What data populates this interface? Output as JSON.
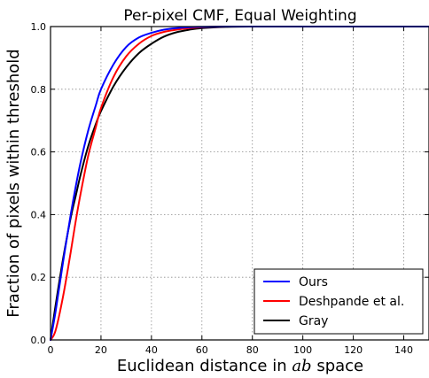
{
  "chart_data": {
    "type": "line",
    "title": "Per-pixel CMF, Equal Weighting",
    "xlabel_prefix": "Euclidean distance in ",
    "xlabel_math": "ab",
    "xlabel_suffix": " space",
    "ylabel": "Fraction of pixels within threshold",
    "xlim": [
      0,
      150
    ],
    "ylim": [
      0,
      1.0
    ],
    "xticks": [
      0,
      20,
      40,
      60,
      80,
      100,
      120,
      140
    ],
    "yticks": [
      0.0,
      0.2,
      0.4,
      0.6,
      0.8,
      1.0
    ],
    "ytick_labels": [
      "0.0",
      "0.2",
      "0.4",
      "0.6",
      "0.8",
      "1.0"
    ],
    "grid": true,
    "legend_position": "lower-right",
    "series": [
      {
        "name": "Ours",
        "color": "#0000ff",
        "x": [
          0,
          2,
          5,
          8,
          10,
          12,
          15,
          18,
          20,
          25,
          30,
          35,
          40,
          45,
          50,
          55,
          60,
          70,
          80,
          100,
          150
        ],
        "y": [
          0.0,
          0.09,
          0.25,
          0.4,
          0.49,
          0.57,
          0.67,
          0.75,
          0.8,
          0.88,
          0.935,
          0.965,
          0.98,
          0.99,
          0.995,
          0.998,
          0.999,
          1.0,
          1.0,
          1.0,
          1.0
        ]
      },
      {
        "name": "Deshpande et al.",
        "color": "#ff0000",
        "x": [
          0,
          2,
          5,
          8,
          10,
          12,
          15,
          18,
          20,
          25,
          30,
          35,
          40,
          45,
          50,
          55,
          60,
          70,
          80,
          100,
          150
        ],
        "y": [
          0.0,
          0.03,
          0.14,
          0.28,
          0.38,
          0.47,
          0.59,
          0.68,
          0.74,
          0.84,
          0.905,
          0.945,
          0.97,
          0.983,
          0.99,
          0.995,
          0.998,
          1.0,
          1.0,
          1.0,
          1.0
        ]
      },
      {
        "name": "Gray",
        "color": "#000000",
        "x": [
          0,
          2,
          5,
          8,
          10,
          12,
          15,
          18,
          20,
          25,
          30,
          35,
          40,
          45,
          50,
          55,
          60,
          70,
          80,
          100,
          150
        ],
        "y": [
          0.0,
          0.11,
          0.26,
          0.39,
          0.46,
          0.53,
          0.62,
          0.69,
          0.73,
          0.81,
          0.87,
          0.915,
          0.945,
          0.968,
          0.982,
          0.99,
          0.995,
          0.999,
          1.0,
          1.0,
          1.0
        ]
      }
    ]
  }
}
